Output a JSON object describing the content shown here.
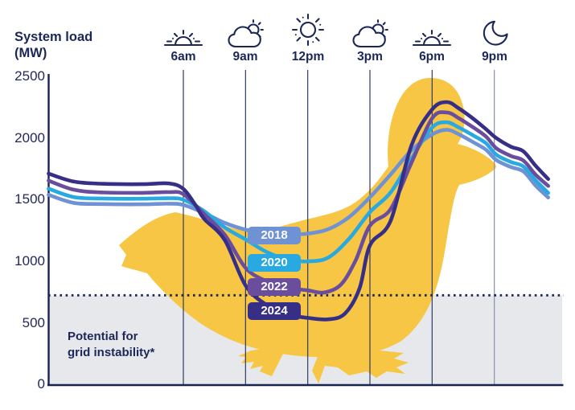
{
  "header": {
    "title_line1": "System load",
    "title_line2": "(MW)"
  },
  "colors": {
    "text_navy": "#1C2758",
    "axis": "#16234E",
    "gridline": "#2F3A68",
    "gridline_light": "#8791AC",
    "duck_yellow": "#F6C644",
    "instability_fill": "#E7E8EC",
    "background": "#FFFFFF"
  },
  "chart_data": {
    "type": "line",
    "title": "System load (MW)",
    "x_unit": "hour_of_day",
    "y_label_line1": "System load",
    "y_label_line2": "(MW)",
    "y_range": [
      0,
      2500
    ],
    "y_ticks": [
      2500,
      2000,
      1500,
      1000,
      500,
      0
    ],
    "grid": "vertical-only",
    "x_ticks": [
      {
        "hour": 6,
        "label": "6am",
        "icon": "sunrise-icon"
      },
      {
        "hour": 9,
        "label": "9am",
        "icon": "partly-cloudy-icon"
      },
      {
        "hour": 12,
        "label": "12pm",
        "icon": "sun-icon"
      },
      {
        "hour": 15,
        "label": "3pm",
        "icon": "partly-cloudy-icon"
      },
      {
        "hour": 18,
        "label": "6pm",
        "icon": "sunset-icon"
      },
      {
        "hour": 21,
        "label": "9pm",
        "icon": "moon-icon"
      }
    ],
    "threshold": {
      "value_mw": 725,
      "style": "dotted",
      "region_label_line1": "Potential for",
      "region_label_line2": "grid instability*"
    },
    "legend_position": "on-chart-pills",
    "series": [
      {
        "name": "2018",
        "color": "#6E92D4",
        "points": [
          [
            -0.5,
            1540
          ],
          [
            0.7,
            1475
          ],
          [
            2,
            1465
          ],
          [
            4,
            1463
          ],
          [
            5.3,
            1468
          ],
          [
            6,
            1458
          ],
          [
            7,
            1392
          ],
          [
            8,
            1312
          ],
          [
            9,
            1258
          ],
          [
            10,
            1228
          ],
          [
            11,
            1220
          ],
          [
            12,
            1225
          ],
          [
            13,
            1262
          ],
          [
            14,
            1360
          ],
          [
            15,
            1520
          ],
          [
            16,
            1705
          ],
          [
            17,
            1900
          ],
          [
            18,
            2030
          ],
          [
            18.7,
            2068
          ],
          [
            19.3,
            2030
          ],
          [
            20,
            1965
          ],
          [
            20.6,
            1905
          ],
          [
            21.1,
            1822
          ],
          [
            21.8,
            1765
          ],
          [
            22.4,
            1730
          ],
          [
            23,
            1614
          ],
          [
            23.6,
            1518
          ]
        ]
      },
      {
        "name": "2020",
        "color": "#29A9E1",
        "points": [
          [
            -0.5,
            1590
          ],
          [
            0.7,
            1522
          ],
          [
            2,
            1510
          ],
          [
            4,
            1508
          ],
          [
            5.3,
            1512
          ],
          [
            6,
            1500
          ],
          [
            7,
            1408
          ],
          [
            8,
            1275
          ],
          [
            9,
            1178
          ],
          [
            10,
            1078
          ],
          [
            11,
            1015
          ],
          [
            12,
            1000
          ],
          [
            13,
            1032
          ],
          [
            14,
            1185
          ],
          [
            15,
            1400
          ],
          [
            16,
            1560
          ],
          [
            17,
            1835
          ],
          [
            18,
            2085
          ],
          [
            18.7,
            2128
          ],
          [
            19.3,
            2085
          ],
          [
            20,
            2020
          ],
          [
            20.6,
            1958
          ],
          [
            21.1,
            1865
          ],
          [
            21.8,
            1806
          ],
          [
            22.4,
            1770
          ],
          [
            23,
            1656
          ],
          [
            23.6,
            1555
          ]
        ]
      },
      {
        "name": "2022",
        "color": "#6A4E9D",
        "points": [
          [
            -0.5,
            1655
          ],
          [
            0.7,
            1582
          ],
          [
            2,
            1560
          ],
          [
            4,
            1556
          ],
          [
            5.3,
            1562
          ],
          [
            6,
            1545
          ],
          [
            7,
            1385
          ],
          [
            8,
            1215
          ],
          [
            9,
            948
          ],
          [
            10,
            840
          ],
          [
            11,
            788
          ],
          [
            12,
            765
          ],
          [
            12.8,
            748
          ],
          [
            13.6,
            812
          ],
          [
            14.3,
            1005
          ],
          [
            15,
            1290
          ],
          [
            16,
            1425
          ],
          [
            17,
            1800
          ],
          [
            18,
            2160
          ],
          [
            18.7,
            2208
          ],
          [
            19.3,
            2160
          ],
          [
            20,
            2085
          ],
          [
            20.6,
            2012
          ],
          [
            21.1,
            1918
          ],
          [
            21.8,
            1855
          ],
          [
            22.4,
            1818
          ],
          [
            23,
            1702
          ],
          [
            23.6,
            1612
          ]
        ]
      },
      {
        "name": "2024",
        "color": "#372F87",
        "points": [
          [
            -0.5,
            1712
          ],
          [
            0.7,
            1648
          ],
          [
            2,
            1630
          ],
          [
            4,
            1626
          ],
          [
            5.3,
            1632
          ],
          [
            6,
            1588
          ],
          [
            6.6,
            1452
          ],
          [
            7,
            1345
          ],
          [
            8,
            1172
          ],
          [
            9,
            805
          ],
          [
            10,
            648
          ],
          [
            11,
            570
          ],
          [
            12,
            542
          ],
          [
            13,
            530
          ],
          [
            13.8,
            578
          ],
          [
            14.5,
            782
          ],
          [
            15,
            1130
          ],
          [
            16,
            1330
          ],
          [
            17,
            1940
          ],
          [
            18,
            2232
          ],
          [
            18.7,
            2292
          ],
          [
            19.3,
            2240
          ],
          [
            20,
            2155
          ],
          [
            20.6,
            2072
          ],
          [
            21.1,
            2000
          ],
          [
            21.8,
            1930
          ],
          [
            22.4,
            1893
          ],
          [
            23,
            1774
          ],
          [
            23.6,
            1668
          ]
        ]
      }
    ]
  }
}
